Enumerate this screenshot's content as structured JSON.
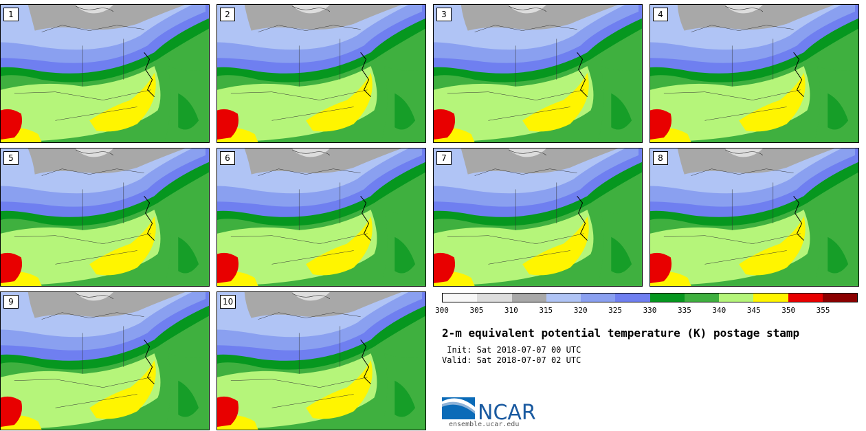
{
  "panels": [
    "1",
    "2",
    "3",
    "4",
    "5",
    "6",
    "7",
    "8",
    "9",
    "10"
  ],
  "colorbar": {
    "colors": [
      "#f7f7f7",
      "#dddddd",
      "#a8a8a8",
      "#b0c4f5",
      "#8aa0f0",
      "#6f7ff0",
      "#06971f",
      "#3fb03f",
      "#b5f57a",
      "#fff500",
      "#e80000",
      "#8b0000"
    ],
    "ticks": [
      "300",
      "305",
      "310",
      "315",
      "320",
      "325",
      "330",
      "335",
      "340",
      "345",
      "350",
      "355"
    ]
  },
  "title": "2-m equivalent potential temperature (K) postage stamp",
  "init": " Init: Sat 2018-07-07 00 UTC",
  "valid": "Valid: Sat 2018-07-07 02 UTC",
  "logo": {
    "text": "NCAR",
    "color": "#1a5aa0"
  },
  "url": "ensemble.ucar.edu"
}
